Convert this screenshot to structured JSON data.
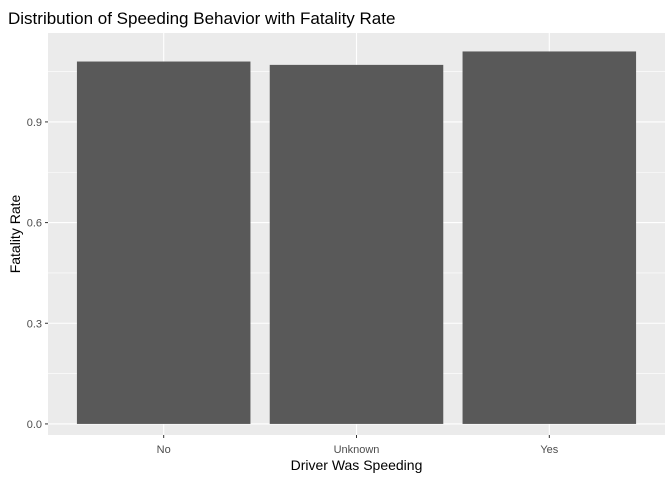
{
  "chart_data": {
    "type": "bar",
    "title": "Distribution of Speeding Behavior with Fatality Rate",
    "xlabel": "Driver Was Speeding",
    "ylabel": "Fatality Rate",
    "categories": [
      "No",
      "Unknown",
      "Yes"
    ],
    "values": [
      1.08,
      1.07,
      1.11
    ],
    "ylim": [
      -0.033,
      1.165
    ],
    "yticks": [
      0.0,
      0.3,
      0.6,
      0.9
    ],
    "ytick_labels": [
      "0.0",
      "0.3",
      "0.6",
      "0.9"
    ],
    "grid": true,
    "legend": "none",
    "colors": {
      "panel_background": "#EBEBEB",
      "grid_major": "#FFFFFF",
      "bar_fill": "#595959",
      "tick_text": "#4D4D4D",
      "tick_mark": "#333333"
    }
  }
}
